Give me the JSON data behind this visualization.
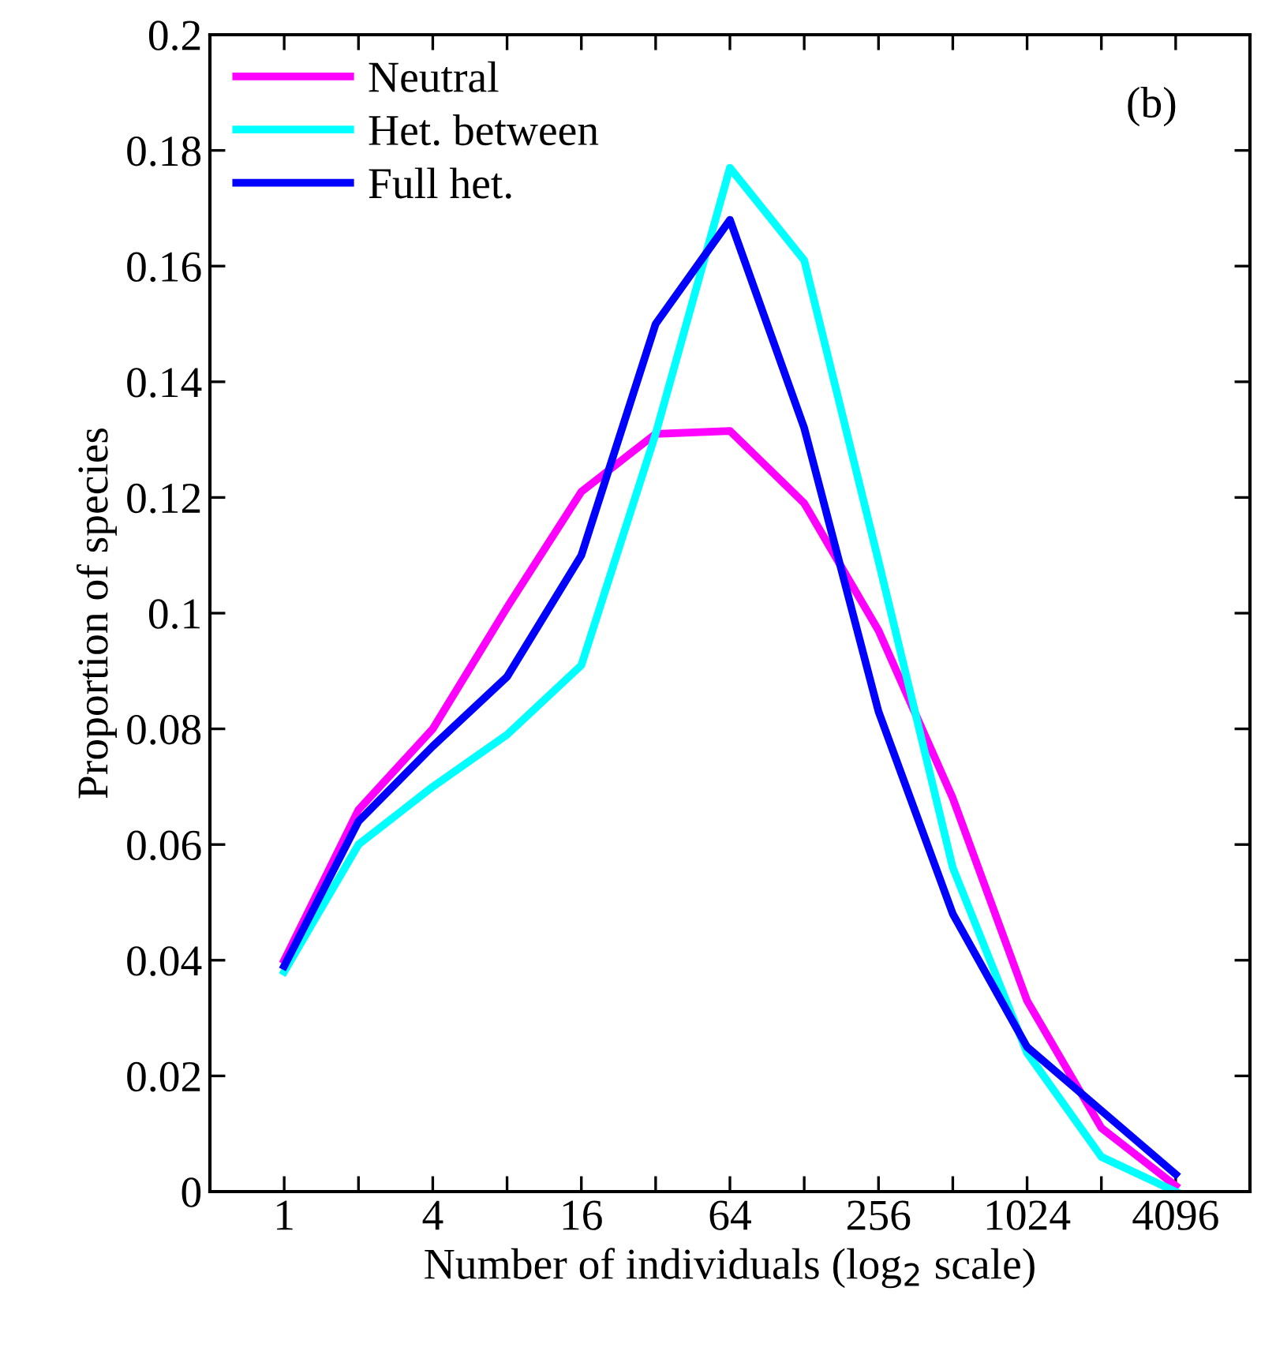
{
  "chart_data": {
    "type": "line",
    "xlabel": "Number of individuals (log$_{2}$ scale)",
    "ylabel": "Proportion of species",
    "annotations": [
      "(b)"
    ],
    "x": [
      1,
      2,
      4,
      8,
      16,
      32,
      64,
      128,
      256,
      512,
      1024,
      2048,
      4096
    ],
    "series": [
      {
        "name": "Neutral",
        "color": "#ff00ff",
        "values": [
          0.04,
          0.066,
          0.08,
          0.101,
          0.121,
          0.131,
          0.1315,
          0.119,
          0.097,
          0.068,
          0.033,
          0.011,
          0.001
        ]
      },
      {
        "name": "Het. between",
        "color": "#00ffff",
        "values": [
          0.038,
          0.06,
          0.07,
          0.079,
          0.091,
          0.131,
          0.177,
          0.161,
          0.109,
          0.056,
          0.024,
          0.006,
          0.0
        ]
      },
      {
        "name": "Full het.",
        "color": "#0000ff",
        "values": [
          0.039,
          0.064,
          0.077,
          0.089,
          0.11,
          0.15,
          0.168,
          0.132,
          0.083,
          0.048,
          0.025,
          0.014,
          0.003
        ]
      }
    ],
    "log": "x",
    "xlim": [
      0.5,
      8192
    ],
    "xticks": [
      1,
      {
        "value": 2,
        "label": null
      },
      4,
      {
        "value": 8,
        "label": null
      },
      16,
      {
        "value": 32,
        "label": null
      },
      64,
      {
        "value": 128,
        "label": null
      },
      256,
      {
        "value": 512,
        "label": null
      },
      1024,
      {
        "value": 2048,
        "label": null
      },
      4096
    ],
    "ylim": [
      0,
      0.2
    ],
    "yticks": [
      0,
      0.02,
      0.04,
      0.06,
      0.08,
      {
        "value": 0.1,
        "label": "0.1"
      },
      0.12,
      0.14,
      0.16,
      0.18,
      0.2
    ],
    "grid": false,
    "legend": "top left",
    "marker": "none",
    "line_style": "solid"
  }
}
